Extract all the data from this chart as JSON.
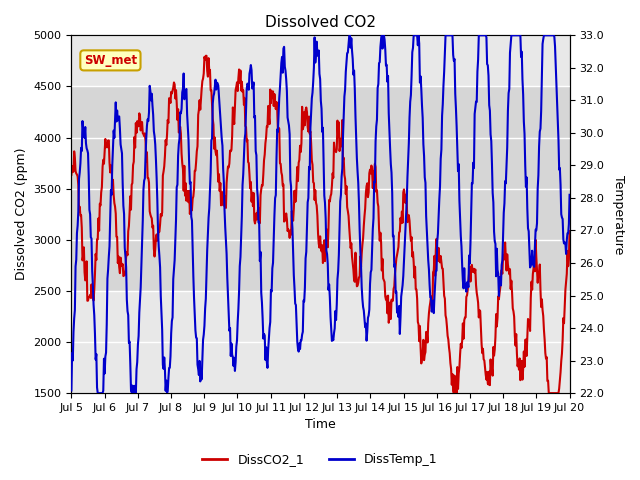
{
  "title": "Dissolved CO2",
  "xlabel": "Time",
  "ylabel_left": "Dissolved CO2 (ppm)",
  "ylabel_right": "Temperature",
  "ylim_left": [
    1500,
    5000
  ],
  "ylim_right": [
    22.0,
    33.0
  ],
  "yticks_left": [
    1500,
    2000,
    2500,
    3000,
    3500,
    4000,
    4500,
    5000
  ],
  "yticks_right": [
    22.0,
    23.0,
    24.0,
    25.0,
    26.0,
    27.0,
    28.0,
    29.0,
    30.0,
    31.0,
    32.0,
    33.0
  ],
  "xtick_labels": [
    "Jul 5",
    "Jul 6",
    "Jul 7",
    "Jul 8",
    "Jul 9",
    "Jul 10",
    "Jul 11",
    "Jul 12",
    "Jul 13",
    "Jul 14",
    "Jul 15",
    "Jul 16",
    "Jul 17",
    "Jul 18",
    "Jul 19",
    "Jul 20"
  ],
  "label_sw_met": "SW_met",
  "legend_co2": "DissCO2_1",
  "legend_temp": "DissTemp_1",
  "color_co2": "#CC0000",
  "color_temp": "#0000CC",
  "line_width": 1.5,
  "plot_bg_color": "#E8E8E8",
  "band_color": "#D0D0D0",
  "sw_met_bg": "#FFFFC0",
  "sw_met_border": "#C8A000",
  "sw_met_text_color": "#CC0000",
  "figsize": [
    6.4,
    4.8
  ],
  "dpi": 100
}
